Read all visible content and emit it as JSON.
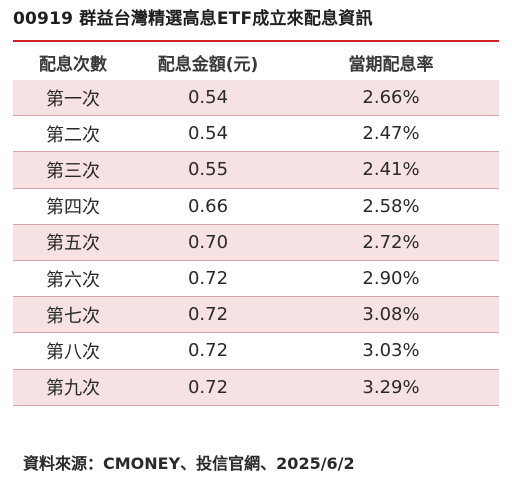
{
  "title": "00919 群益台灣精選高息ETF成立來配息資訊",
  "colors": {
    "accent_line": "#d2232a",
    "row_shade": "#f6e1e3",
    "row_border": "#d9a3a8"
  },
  "table": {
    "headers": [
      "配息次數",
      "配息金額(元)",
      "當期配息率"
    ],
    "rows": [
      {
        "count": "第一次",
        "amount": "0.54",
        "rate": "2.66%"
      },
      {
        "count": "第二次",
        "amount": "0.54",
        "rate": "2.47%"
      },
      {
        "count": "第三次",
        "amount": "0.55",
        "rate": "2.41%"
      },
      {
        "count": "第四次",
        "amount": "0.66",
        "rate": "2.58%"
      },
      {
        "count": "第五次",
        "amount": "0.70",
        "rate": "2.72%"
      },
      {
        "count": "第六次",
        "amount": "0.72",
        "rate": "2.90%"
      },
      {
        "count": "第七次",
        "amount": "0.72",
        "rate": "3.08%"
      },
      {
        "count": "第八次",
        "amount": "0.72",
        "rate": "3.03%"
      },
      {
        "count": "第九次",
        "amount": "0.72",
        "rate": "3.29%"
      }
    ]
  },
  "source": "資料來源：CMONEY、投信官網、2025/6/2"
}
